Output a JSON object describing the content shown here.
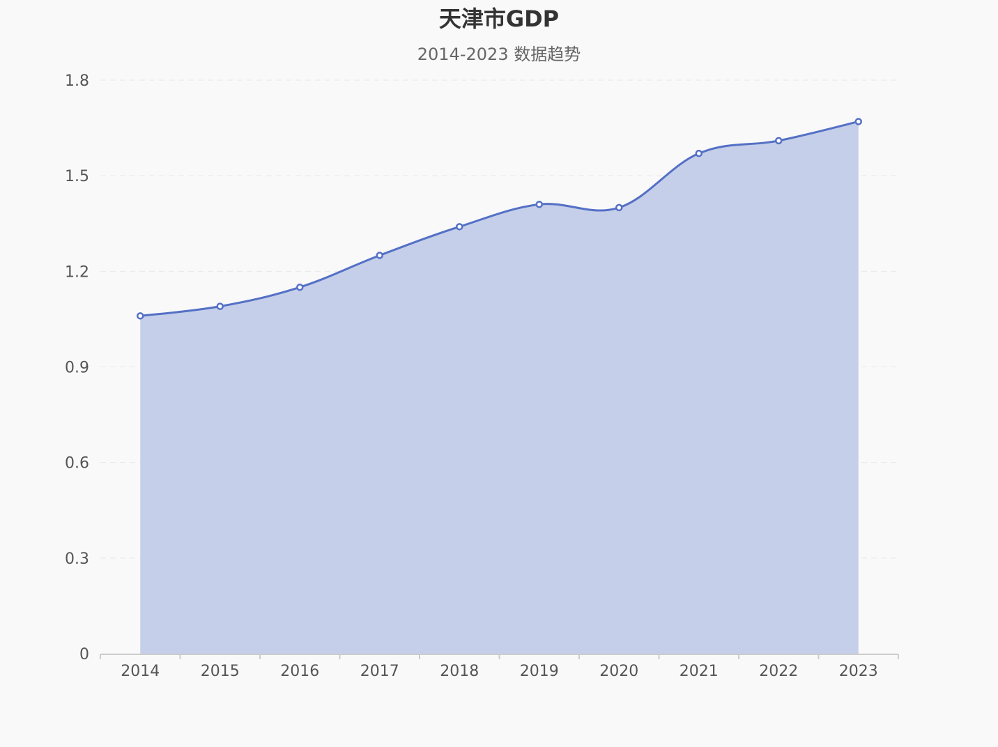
{
  "chart_data": {
    "type": "area",
    "title": "天津市GDP",
    "subtitle": "2014-2023 数据趋势",
    "xlabel": "",
    "ylabel": "",
    "categories": [
      "2014",
      "2015",
      "2016",
      "2017",
      "2018",
      "2019",
      "2020",
      "2021",
      "2022",
      "2023"
    ],
    "series": [
      {
        "values": [
          1.06,
          1.09,
          1.15,
          1.25,
          1.34,
          1.41,
          1.4,
          1.57,
          1.61,
          1.67
        ]
      }
    ],
    "ylim": [
      0,
      1.8
    ],
    "yticks": [
      "0",
      "0.3",
      "0.6",
      "0.9",
      "1.2",
      "1.5",
      "1.8"
    ],
    "grid": true,
    "legend": "none",
    "colors": {
      "line": "#5470c6",
      "area": "#c5cfe9",
      "grid": "#e8e8e8",
      "axis": "#cccccc",
      "background": "#f9f9f9"
    }
  }
}
